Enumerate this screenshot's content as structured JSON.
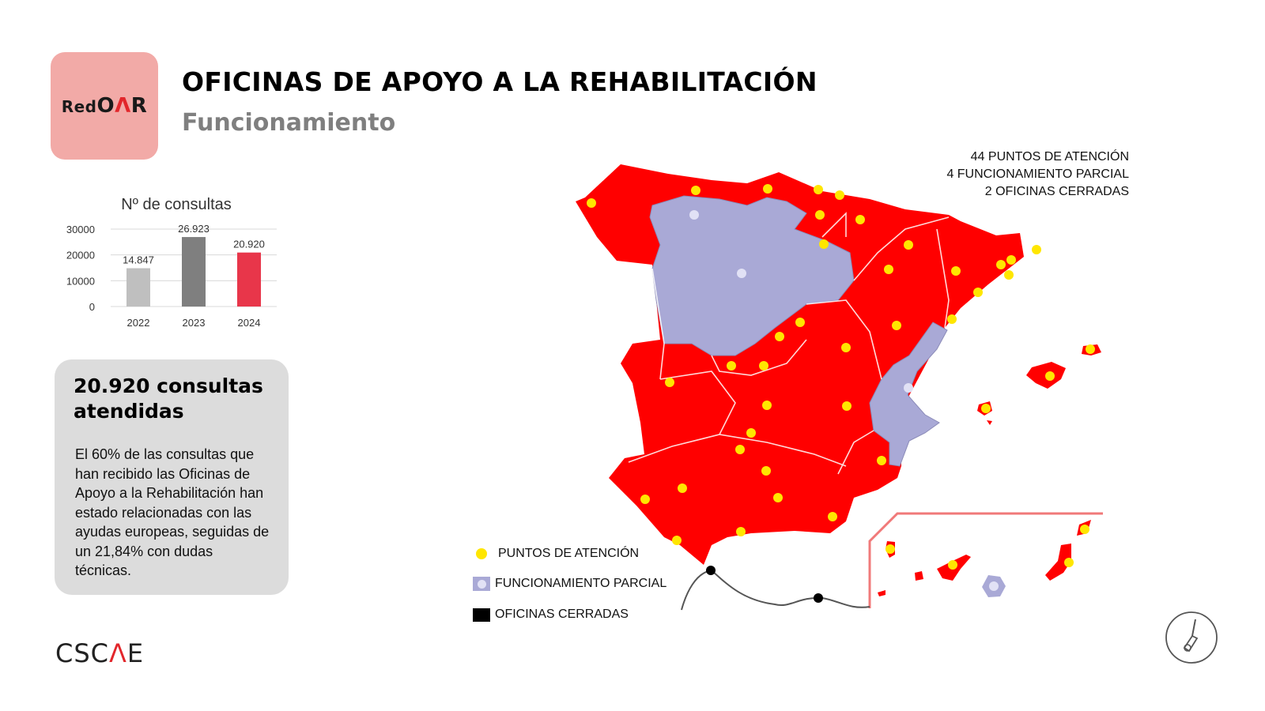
{
  "logo": {
    "prefix": "Red",
    "main": "O",
    "accent": "Λ",
    "suffix": "R"
  },
  "header": {
    "title": "OFICINAS DE APOYO A LA REHABILITACIÓN",
    "subtitle": "Funcionamiento"
  },
  "chart_data": {
    "type": "bar",
    "title": "Nº de consultas",
    "categories": [
      "2022",
      "2023",
      "2024"
    ],
    "values": [
      14847,
      26923,
      20920
    ],
    "data_labels": [
      "14.847",
      "26.923",
      "20.920"
    ],
    "y_ticks": [
      "0",
      "10000",
      "20000",
      "30000"
    ],
    "ylim": [
      0,
      30000
    ],
    "colors": [
      "#bfbfbf",
      "#7f7f7f",
      "#e8364a"
    ],
    "grid": true
  },
  "summary": {
    "title": "20.920 consultas atendidas",
    "body": "El 60% de las consultas que han recibido las Oficinas de Apoyo a la Rehabilitación han estado relacionadas con las ayudas europeas, seguidas de un 21,84% con dudas técnicas."
  },
  "map": {
    "stats": [
      "44 PUNTOS DE ATENCIÓN",
      "4 FUNCIONAMIENTO PARCIAL",
      "2 OFICINAS CERRADAS"
    ],
    "legend": {
      "attention": "PUNTOS DE ATENCIÓN",
      "partial": "FUNCIONAMIENTO PARCIAL",
      "closed": "OFICINAS CERRADAS"
    },
    "colors": {
      "attention_region": "#ff0000",
      "partial_region": "#a9a9d6",
      "attention_point": "#ffe600",
      "partial_point": "#e1e1f5",
      "closed_point": "#000000",
      "inset_frame": "#f07a7a"
    }
  },
  "footer": {
    "brand_prefix": "CSC",
    "brand_accent": "Λ",
    "brand_suffix": "E"
  },
  "icons": {
    "corner": "compass-icon"
  }
}
